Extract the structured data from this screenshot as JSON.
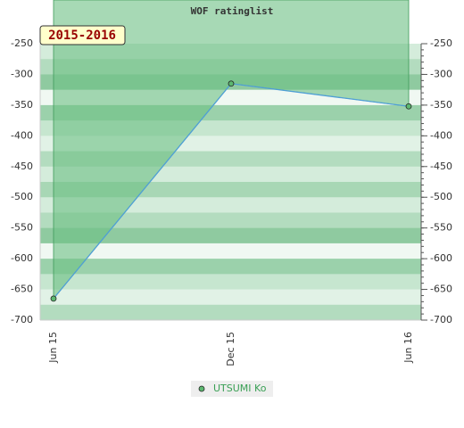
{
  "chart_data": {
    "type": "line",
    "title": "WOF ratinglist",
    "annotation": "2015-2016",
    "categories": [
      "Jun 15",
      "Dec 15",
      "Jun 16"
    ],
    "series": [
      {
        "name": "UTSUMI Ko",
        "color": "#4f9fd6",
        "values": [
          -665,
          -315,
          -352
        ]
      }
    ],
    "ylim": [
      -700,
      -250
    ],
    "yticks": [
      -250,
      -300,
      -350,
      -400,
      -450,
      -500,
      -550,
      -600,
      -650,
      -700
    ],
    "fill_color": "#6cbf84",
    "grid": false
  }
}
